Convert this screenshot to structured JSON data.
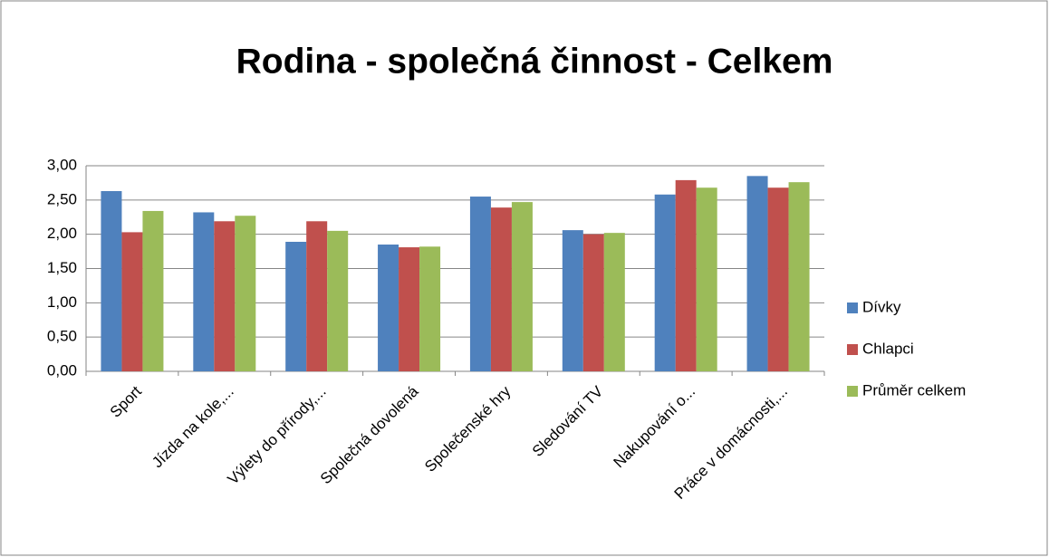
{
  "chart_data": {
    "type": "bar",
    "title": "Rodina - společná činnost - Celkem",
    "categories": [
      "Sport",
      "Jízda na kole,...",
      "Výlety do přírody,...",
      "Společná dovolená",
      "Společenské hry",
      "Sledování TV",
      "Nakupování o...",
      "Práce v domácnosti,..."
    ],
    "series": [
      {
        "name": "Dívky",
        "color": "#4f81bd",
        "values": [
          2.63,
          2.32,
          1.89,
          1.85,
          2.55,
          2.06,
          2.58,
          2.85
        ]
      },
      {
        "name": "Chlapci",
        "color": "#c0504d",
        "values": [
          2.03,
          2.19,
          2.19,
          1.81,
          2.39,
          2.0,
          2.79,
          2.68
        ]
      },
      {
        "name": "Průměr celkem",
        "color": "#9bbb59",
        "values": [
          2.34,
          2.27,
          2.05,
          1.82,
          2.47,
          2.02,
          2.68,
          2.76
        ]
      }
    ],
    "ylim": [
      0,
      3
    ],
    "yticks": [
      {
        "value": 0,
        "label": "0,00"
      },
      {
        "value": 0.5,
        "label": "0,50"
      },
      {
        "value": 1,
        "label": "1,00"
      },
      {
        "value": 1.5,
        "label": "1,50"
      },
      {
        "value": 2,
        "label": "2,00"
      },
      {
        "value": 2.5,
        "label": "2,50"
      },
      {
        "value": 3,
        "label": "3,00"
      }
    ],
    "grid": true,
    "legend": "right"
  }
}
